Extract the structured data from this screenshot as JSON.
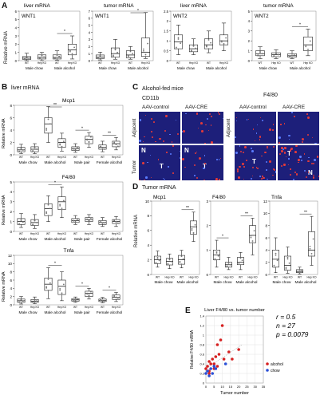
{
  "panels": {
    "A": {
      "letter": "A",
      "ylabel": "Relative mRNA",
      "charts": [
        {
          "header": "liver mRNA",
          "inner": "WNT1",
          "ticks": [
            "0",
            "1",
            "2",
            "3",
            "4",
            "5",
            "6"
          ],
          "xticks": [
            "WT",
            "Hep KO",
            "WT",
            "Hep KO"
          ],
          "groups": [
            "Male chow",
            "Male alcohol"
          ],
          "medians": [
            0.3,
            0.4,
            0.4,
            1.3
          ],
          "q1": [
            0.15,
            0.2,
            0.2,
            0.7
          ],
          "q3": [
            0.5,
            0.7,
            0.7,
            2.0
          ],
          "lo": [
            0.0,
            0.0,
            0.05,
            0.2
          ],
          "hi": [
            0.9,
            1.0,
            1.2,
            3.0
          ],
          "ymax": 6,
          "sig": [
            2,
            3
          ]
        },
        {
          "header": "tumor mRNA",
          "inner": "WNT1",
          "ticks": [
            "0",
            "1",
            "2",
            "3",
            "4",
            "5",
            "6",
            "7"
          ],
          "xticks": [
            "WT",
            "Hep KO",
            "WT",
            "Hep KO"
          ],
          "groups": [
            "Male chow",
            "Male alcohol"
          ],
          "medians": [
            0.5,
            1.0,
            0.8,
            1.2
          ],
          "q1": [
            0.3,
            0.5,
            0.4,
            0.6
          ],
          "q3": [
            0.8,
            1.8,
            1.4,
            3.2
          ],
          "lo": [
            0.1,
            0.2,
            0.2,
            0.3
          ],
          "hi": [
            1.2,
            3.0,
            2.0,
            6.8
          ],
          "ymax": 7,
          "sig": [
            2,
            3
          ]
        },
        {
          "header": "liver mRNA",
          "inner": "WNT2",
          "ticks": [
            "0",
            "0.5",
            "1",
            "1.5",
            "2",
            "2.5"
          ],
          "xticks": [
            "WT",
            "Hep KO",
            "WT",
            "Hep KO"
          ],
          "groups": [
            "Male chow",
            "Male alcohol"
          ],
          "medians": [
            0.95,
            0.6,
            0.8,
            1.0
          ],
          "q1": [
            0.6,
            0.45,
            0.6,
            0.8
          ],
          "q3": [
            1.3,
            0.8,
            1.1,
            1.3
          ],
          "lo": [
            0.3,
            0.3,
            0.4,
            0.5
          ],
          "hi": [
            1.8,
            1.1,
            1.5,
            1.9
          ],
          "ymax": 2.5,
          "sig": []
        },
        {
          "header": "tumor mRNA",
          "inner": "WNT2",
          "ticks": [
            "0",
            "1",
            "2",
            "3",
            "4",
            "5"
          ],
          "xticks": [
            "WT",
            "Hep KO",
            "WT",
            "Hep KO"
          ],
          "groups": [
            "Male chow",
            "Male alcohol"
          ],
          "medians": [
            0.7,
            0.6,
            0.5,
            1.6
          ],
          "q1": [
            0.5,
            0.4,
            0.35,
            1.0
          ],
          "q3": [
            1.0,
            0.8,
            0.7,
            2.4
          ],
          "lo": [
            0.2,
            0.2,
            0.2,
            0.5
          ],
          "hi": [
            1.4,
            1.1,
            1.0,
            3.2
          ],
          "ymax": 5,
          "sig": [
            2,
            3
          ]
        }
      ]
    },
    "B": {
      "letter": "B",
      "header": "liver mRNA",
      "ylabel": "Relative mRNA",
      "xticks": [
        "WT",
        "Hep KO",
        "WT",
        "Hep KO",
        "WT",
        "Hep KO",
        "WT",
        "Hep KO"
      ],
      "groups": [
        "Male chow",
        "Male alcohol",
        "Male pair",
        "Female alcohol"
      ],
      "charts": [
        {
          "title": "Mcp1",
          "ticks": [
            "0",
            "2",
            "4",
            "6",
            "8"
          ],
          "ymax": 8,
          "medians": [
            0.8,
            0.9,
            5.0,
            2.0,
            1.0,
            2.5,
            1.2,
            1.8
          ],
          "q1": [
            0.5,
            0.5,
            3.5,
            1.2,
            0.7,
            1.8,
            0.9,
            1.3
          ],
          "q3": [
            1.2,
            1.3,
            6.0,
            2.6,
            1.3,
            3.0,
            1.6,
            2.2
          ],
          "lo": [
            0.2,
            0.2,
            2.0,
            0.6,
            0.4,
            1.2,
            0.5,
            0.8
          ],
          "hi": [
            1.7,
            1.8,
            7.8,
            3.5,
            1.8,
            3.6,
            2.2,
            2.8
          ],
          "sig": [
            [
              2,
              3
            ],
            [
              4,
              5
            ],
            [
              6,
              7
            ]
          ],
          "sigtxt": [
            "**",
            "*",
            "**"
          ]
        },
        {
          "title": "F4/80",
          "ticks": [
            "0",
            "1",
            "2",
            "3",
            "4",
            "5"
          ],
          "ymax": 5,
          "medians": [
            1.0,
            0.9,
            2.3,
            3.0,
            1.1,
            1.2,
            0.9,
            1.0
          ],
          "q1": [
            0.7,
            0.6,
            1.6,
            2.2,
            0.9,
            1.0,
            0.7,
            0.8
          ],
          "q3": [
            1.3,
            1.2,
            2.8,
            3.5,
            1.3,
            1.4,
            1.1,
            1.2
          ],
          "lo": [
            0.4,
            0.3,
            1.0,
            1.4,
            0.7,
            0.7,
            0.5,
            0.5
          ],
          "hi": [
            1.8,
            1.7,
            3.6,
            4.5,
            1.6,
            1.7,
            1.4,
            1.5
          ],
          "sig": [
            [
              2,
              3
            ]
          ],
          "sigtxt": [
            "*"
          ]
        },
        {
          "title": "Tnfa",
          "ticks": [
            "0",
            "2",
            "4",
            "6",
            "8",
            "10",
            "12"
          ],
          "ymax": 12,
          "medians": [
            1.0,
            0.9,
            5.0,
            4.5,
            1.2,
            2.8,
            1.1,
            1.8
          ],
          "q1": [
            0.6,
            0.6,
            3.5,
            2.5,
            0.9,
            2.0,
            0.8,
            1.3
          ],
          "q3": [
            1.4,
            1.3,
            6.5,
            6.0,
            1.5,
            3.3,
            1.4,
            2.4
          ],
          "lo": [
            0.2,
            0.3,
            1.5,
            1.0,
            0.6,
            1.4,
            0.5,
            0.8
          ],
          "hi": [
            2.0,
            1.9,
            9.0,
            8.0,
            1.9,
            4.0,
            1.8,
            3.0
          ],
          "sig": [
            [
              2,
              3
            ],
            [
              4,
              5
            ],
            [
              6,
              7
            ]
          ],
          "sigtxt": [
            "*",
            "*",
            "*"
          ]
        }
      ]
    },
    "C": {
      "letter": "C",
      "header": "Alcohol-fed mice",
      "marker_left": "CD11b",
      "marker_right": "F4/80",
      "col1": "AAV-control",
      "col2": "AAV-CRE",
      "row1": "Adjacent",
      "row2": "Tumor",
      "lbl_N": "N",
      "lbl_T": "T"
    },
    "D": {
      "letter": "D",
      "header": "Tumor mRNA",
      "ylabel": "Relative mRNA",
      "xticks": [
        "WT",
        "Hep KO",
        "WT",
        "Hep KO"
      ],
      "groups": [
        "Male chow",
        "Male alcohol"
      ],
      "charts": [
        {
          "title": "Mcp1",
          "ticks": [
            "0",
            "2",
            "4",
            "6",
            "8",
            "10"
          ],
          "ymax": 10,
          "medians": [
            2.0,
            1.8,
            2.0,
            6.5
          ],
          "q1": [
            1.5,
            1.3,
            1.4,
            5.5
          ],
          "q3": [
            2.5,
            2.2,
            2.6,
            7.3
          ],
          "lo": [
            1.0,
            0.8,
            0.9,
            4.5
          ],
          "hi": [
            3.2,
            2.8,
            3.3,
            8.5
          ],
          "sig": [
            [
              2,
              3
            ]
          ],
          "sigtxt": [
            "**"
          ]
        },
        {
          "title": "F4/80",
          "ticks": [
            "0",
            "1",
            "2",
            "3"
          ],
          "ymax": 3,
          "medians": [
            0.8,
            0.4,
            0.5,
            1.6
          ],
          "q1": [
            0.6,
            0.3,
            0.4,
            1.3
          ],
          "q3": [
            1.0,
            0.5,
            0.7,
            2.0
          ],
          "lo": [
            0.3,
            0.2,
            0.2,
            0.8
          ],
          "hi": [
            1.4,
            0.7,
            0.9,
            2.3
          ],
          "sig": [
            [
              0,
              1
            ],
            [
              2,
              3
            ]
          ],
          "sigtxt": [
            "*",
            "**"
          ]
        },
        {
          "title": "Tnfa",
          "ticks": [
            "0",
            "2",
            "4",
            "6",
            "8",
            "10",
            "12"
          ],
          "ymax": 12,
          "medians": [
            2.5,
            1.5,
            0.5,
            4.0
          ],
          "q1": [
            1.2,
            0.7,
            0.3,
            3.0
          ],
          "q3": [
            4.0,
            3.0,
            0.8,
            7.0
          ],
          "lo": [
            0.3,
            0.2,
            0.1,
            1.5
          ],
          "hi": [
            6.0,
            4.5,
            1.2,
            9.5
          ],
          "sig": [
            [
              2,
              3
            ]
          ],
          "sigtxt": [
            "**"
          ]
        }
      ]
    },
    "E": {
      "letter": "E",
      "title": "Liver F4/80 vs. tumor number",
      "ylabel": "Relative F4/80 mRNA",
      "xlabel": "Tumor number",
      "r_text": "r = 0.5",
      "n_text": "n = 27",
      "p_text": "p = 0.0079",
      "legend": [
        "alcohol",
        "chow"
      ],
      "colors": {
        "alcohol": "#d62020",
        "chow": "#2a4fd6"
      },
      "xticks": [
        "0",
        "5",
        "10",
        "15",
        "20",
        "25",
        "30",
        "35"
      ],
      "yticks": [
        "0",
        "0.2",
        "0.4",
        "0.6",
        "0.8",
        "1",
        "1.2",
        "1.4"
      ]
    }
  },
  "chart_data": [
    {
      "type": "scatter",
      "title": "Liver F4/80 vs. tumor number",
      "xlabel": "Tumor number",
      "ylabel": "Relative F4/80 mRNA",
      "xlim": [
        0,
        35
      ],
      "ylim": [
        0,
        1.4
      ],
      "series": [
        {
          "name": "alcohol",
          "x": [
            0,
            1,
            2,
            2,
            3,
            4,
            5,
            6,
            7,
            8,
            9,
            10,
            11,
            14,
            16,
            20,
            2,
            5,
            7
          ],
          "y": [
            0.3,
            0.35,
            0.25,
            0.45,
            0.4,
            0.5,
            0.3,
            0.55,
            0.8,
            0.6,
            0.9,
            1.2,
            0.5,
            0.65,
            0.5,
            0.7,
            0.2,
            0.4,
            0.35
          ]
        },
        {
          "name": "chow",
          "x": [
            0,
            1,
            2,
            3,
            4,
            5,
            6,
            12
          ],
          "y": [
            0.2,
            0.25,
            0.15,
            0.3,
            0.2,
            0.35,
            0.3,
            0.4
          ]
        }
      ]
    }
  ]
}
